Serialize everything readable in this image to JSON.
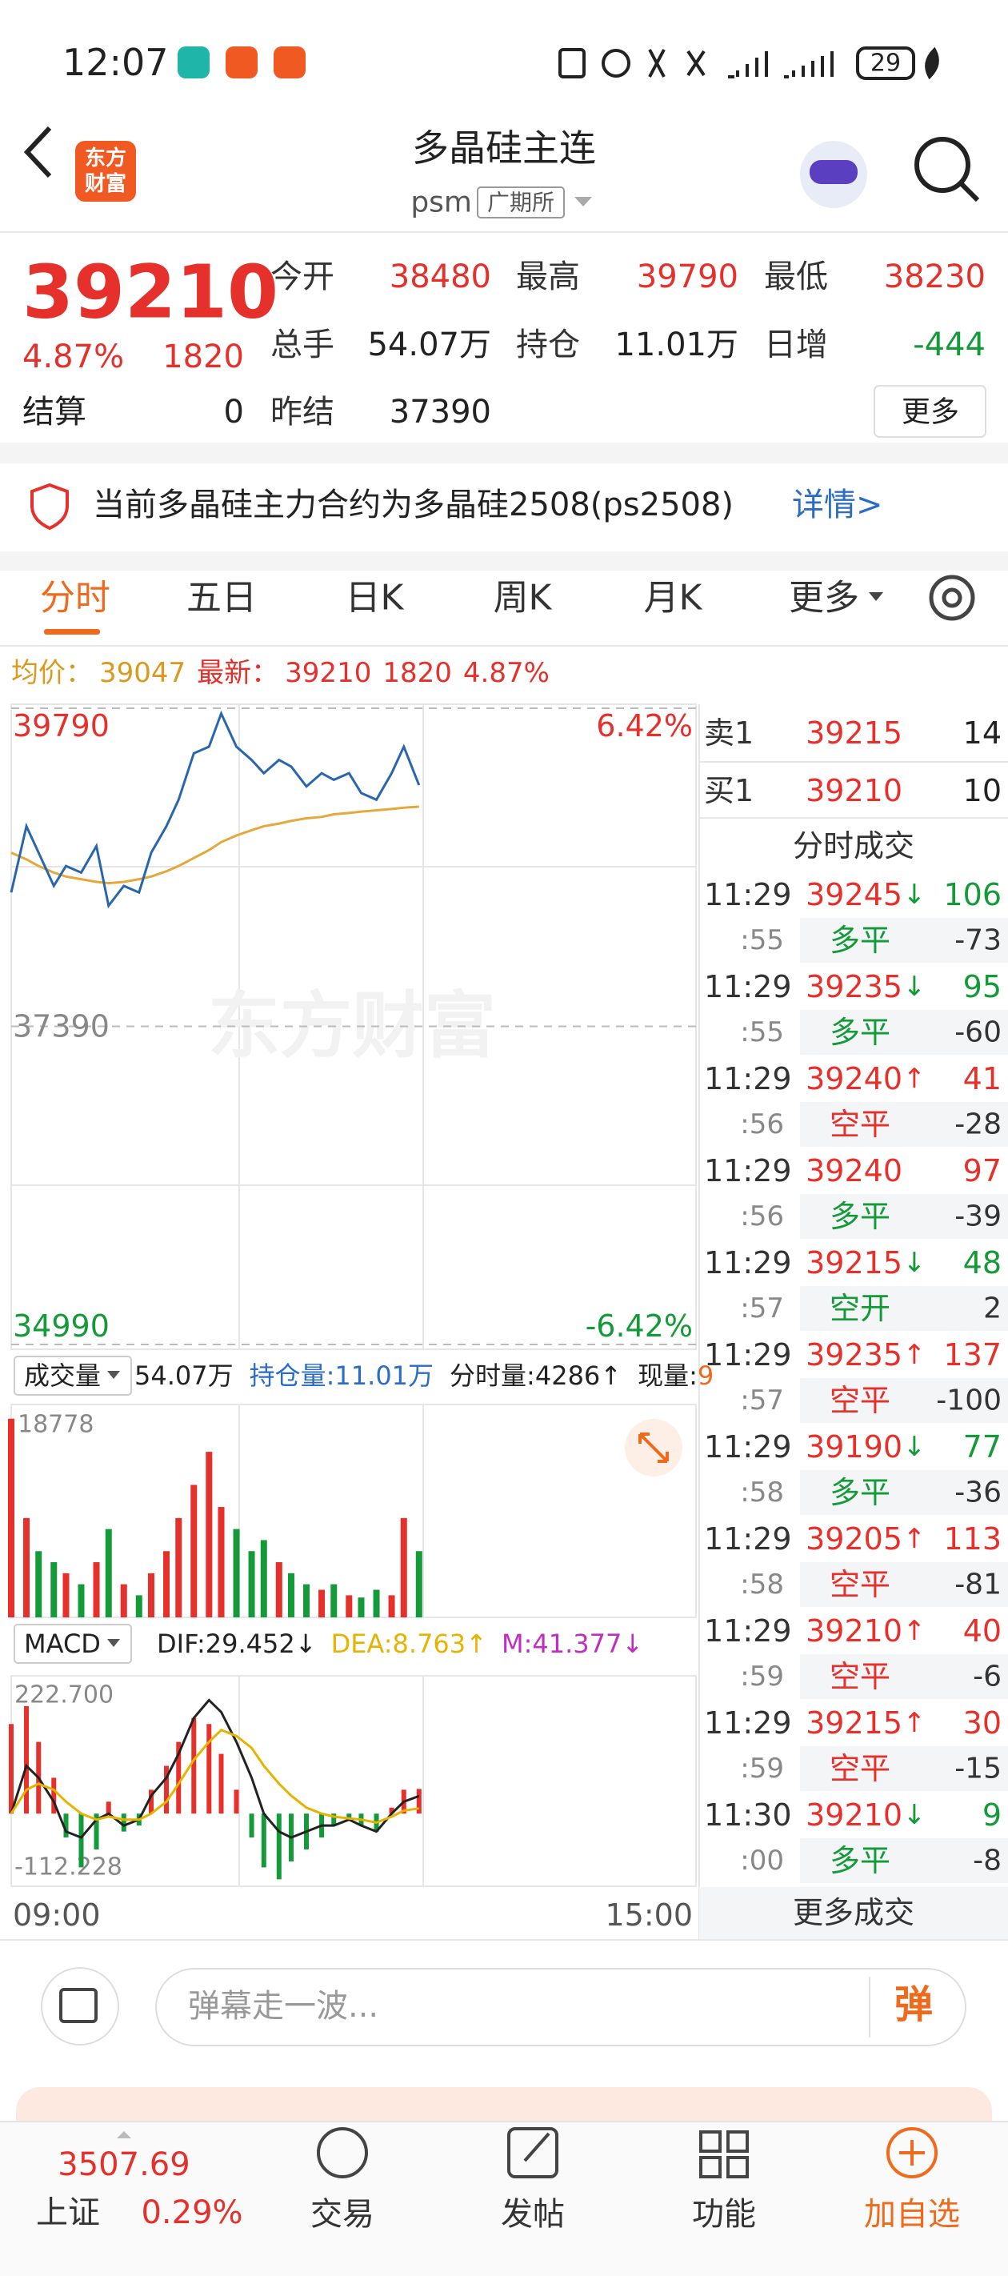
{
  "status_bar": {
    "time": "12:07",
    "battery": "29"
  },
  "header": {
    "logo": [
      "东方",
      "财富"
    ],
    "title": "多晶硅主连",
    "symbol": "psm",
    "exchange": "广期所"
  },
  "quote": {
    "price": 39210,
    "change_pct": "4.87%",
    "change": 1820,
    "settle_label": "结算",
    "settle": 0,
    "fields": [
      {
        "label": "今开",
        "value": 38480,
        "color": "#e5302b"
      },
      {
        "label": "最高",
        "value": 39790,
        "color": "#e5302b"
      },
      {
        "label": "最低",
        "value": 38230,
        "color": "#e5302b"
      },
      {
        "label": "总手",
        "value": "54.07万",
        "color": "#222222"
      },
      {
        "label": "持仓",
        "value": "11.01万",
        "color": "#222222"
      },
      {
        "label": "日增",
        "value": -444,
        "color": "#159a3a"
      },
      {
        "label": "昨结",
        "value": 37390,
        "color": "#222222"
      }
    ],
    "more": "更多"
  },
  "notice": {
    "text": "当前多晶硅主力合约为多晶硅2508(ps2508)",
    "link": "详情>"
  },
  "tabs": [
    "分时",
    "五日",
    "日K",
    "周K",
    "月K",
    "更多"
  ],
  "info": {
    "avg": 39047,
    "last": 39210,
    "change": 1820,
    "change_pct": "4.87%"
  },
  "chart_data": [
    {
      "type": "line",
      "watermark": "东方财富",
      "x": [
        0,
        5,
        9,
        14,
        18,
        23,
        28,
        32,
        37,
        42,
        46,
        51,
        55,
        60,
        65,
        69,
        74,
        79,
        83,
        88,
        92,
        97,
        102,
        106,
        111,
        115,
        120,
        125,
        129,
        134
      ],
      "xlim": [
        0,
        225
      ],
      "xticks": [
        {
          "value": 0,
          "label": "09:00"
        },
        {
          "value": 225,
          "label": "15:00"
        }
      ],
      "ylim": [
        34990,
        39790
      ],
      "yticks": [
        34990,
        37390,
        39790
      ],
      "y2lim": [
        -6.42,
        6.42
      ],
      "y2ticks": [
        {
          "value": -6.42,
          "label": "-6.42%"
        },
        {
          "value": 6.42,
          "label": "6.42%"
        }
      ],
      "series": [
        {
          "name": "最新：",
          "color": "#2a66ad",
          "values": [
            38400,
            38900,
            38700,
            38450,
            38600,
            38550,
            38750,
            38300,
            38450,
            38400,
            38700,
            38900,
            39100,
            39450,
            39500,
            39750,
            39500,
            39400,
            39300,
            39400,
            39350,
            39200,
            39300,
            39250,
            39300,
            39150,
            39100,
            39300,
            39500,
            39210
          ]
        },
        {
          "name": "均价：",
          "color": "#e6a83a",
          "values": [
            38700,
            38650,
            38600,
            38550,
            38520,
            38500,
            38480,
            38470,
            38480,
            38500,
            38520,
            38560,
            38600,
            38660,
            38720,
            38780,
            38830,
            38870,
            38900,
            38920,
            38940,
            38960,
            38970,
            38990,
            39000,
            39010,
            39020,
            39030,
            39040,
            39047
          ]
        }
      ]
    },
    {
      "type": "bar",
      "title": "成交量",
      "total": "54.07万",
      "stats": [
        {
          "label": "持仓量:",
          "value": "11.01万"
        },
        {
          "label": "分时量:",
          "value": "4286↑"
        },
        {
          "label": "现量:",
          "value": 9
        }
      ],
      "x": [
        0,
        5,
        9,
        14,
        18,
        23,
        28,
        32,
        37,
        42,
        46,
        51,
        55,
        60,
        65,
        69,
        74,
        79,
        83,
        88,
        92,
        97,
        102,
        106,
        111,
        115,
        120,
        125,
        129,
        134
      ],
      "xlim": [
        0,
        225
      ],
      "ylim": [
        0,
        18778
      ],
      "yticks": [
        18778
      ],
      "up_color": "#e5302b",
      "down_color": "#159a3a",
      "values": [
        18000,
        9000,
        6000,
        5000,
        4000,
        3000,
        5000,
        8000,
        3000,
        2000,
        4000,
        6000,
        9000,
        12000,
        15000,
        10000,
        8000,
        6000,
        7000,
        5000,
        4000,
        3000,
        2500,
        3000,
        2000,
        1800,
        2500,
        2000,
        9000,
        6000
      ]
    },
    {
      "type": "macd",
      "title": "MACD",
      "x": [
        0,
        5,
        9,
        14,
        18,
        23,
        28,
        32,
        37,
        42,
        46,
        51,
        55,
        60,
        65,
        69,
        74,
        79,
        83,
        88,
        92,
        97,
        102,
        106,
        111,
        115,
        120,
        125,
        129,
        134
      ],
      "xlim": [
        0,
        225
      ],
      "ylim": [
        -112.228,
        222.7
      ],
      "yticks": [
        {
          "value": 222.7,
          "label": "222.700"
        },
        {
          "value": -112.228,
          "label": "-112.228"
        }
      ],
      "pos_color": "#e5302b",
      "neg_color": "#159a3a",
      "series": [
        {
          "name": "DIF:",
          "arrow": "↓",
          "color": "#222222",
          "values": [
            0,
            80,
            60,
            20,
            -30,
            -40,
            -10,
            0,
            -20,
            -10,
            30,
            60,
            100,
            160,
            190,
            170,
            120,
            60,
            0,
            -30,
            -40,
            -30,
            -20,
            -20,
            -10,
            -20,
            -30,
            0,
            20,
            29.452
          ]
        },
        {
          "name": "DEA:",
          "arrow": "↑",
          "color": "#e6b400",
          "values": [
            0,
            40,
            50,
            40,
            20,
            0,
            -10,
            -5,
            -10,
            -10,
            0,
            20,
            50,
            90,
            120,
            140,
            130,
            110,
            80,
            50,
            30,
            10,
            0,
            -5,
            -8,
            -10,
            -15,
            -5,
            5,
            8.763
          ]
        },
        {
          "name": "M:",
          "arrow": "↓",
          "color": "#c02ec0",
          "kind": "bar",
          "values": [
            150,
            180,
            120,
            60,
            -40,
            -90,
            -60,
            20,
            -30,
            -20,
            40,
            80,
            120,
            160,
            150,
            100,
            40,
            -40,
            -90,
            -110,
            -80,
            -60,
            -40,
            -20,
            -10,
            -20,
            -30,
            10,
            40,
            41.377
          ]
        }
      ]
    }
  ],
  "order_book": [
    {
      "side": "卖1",
      "price": 39215,
      "vol": 14
    },
    {
      "side": "买1",
      "price": 39210,
      "vol": 10
    }
  ],
  "trades_title": "分时成交",
  "trades": [
    {
      "time": "11:29",
      "price": 39245,
      "arrow": "↓",
      "vol": 106,
      "vol_color": "#159a3a",
      "sec": ":55",
      "type": "多平",
      "type_color": "#159a3a",
      "oi": -73
    },
    {
      "time": "11:29",
      "price": 39235,
      "arrow": "↓",
      "vol": 95,
      "vol_color": "#159a3a",
      "sec": ":55",
      "type": "多平",
      "type_color": "#159a3a",
      "oi": -60
    },
    {
      "time": "11:29",
      "price": 39240,
      "arrow": "↑",
      "vol": 41,
      "vol_color": "#e5302b",
      "sec": ":56",
      "type": "空平",
      "type_color": "#e5302b",
      "oi": -28
    },
    {
      "time": "11:29",
      "price": 39240,
      "vol": 97,
      "vol_color": "#e5302b",
      "sec": ":56",
      "type": "多平",
      "type_color": "#159a3a",
      "oi": -39
    },
    {
      "time": "11:29",
      "price": 39215,
      "arrow": "↓",
      "vol": 48,
      "vol_color": "#159a3a",
      "sec": ":57",
      "type": "空开",
      "type_color": "#159a3a",
      "oi": 2
    },
    {
      "time": "11:29",
      "price": 39235,
      "arrow": "↑",
      "vol": 137,
      "vol_color": "#e5302b",
      "sec": ":57",
      "type": "空平",
      "type_color": "#e5302b",
      "oi": -100
    },
    {
      "time": "11:29",
      "price": 39190,
      "arrow": "↓",
      "vol": 77,
      "vol_color": "#159a3a",
      "sec": ":58",
      "type": "多平",
      "type_color": "#159a3a",
      "oi": -36
    },
    {
      "time": "11:29",
      "price": 39205,
      "arrow": "↑",
      "vol": 113,
      "vol_color": "#e5302b",
      "sec": ":58",
      "type": "空平",
      "type_color": "#e5302b",
      "oi": -81
    },
    {
      "time": "11:29",
      "price": 39210,
      "arrow": "↑",
      "vol": 40,
      "vol_color": "#e5302b",
      "sec": ":59",
      "type": "空平",
      "type_color": "#e5302b",
      "oi": -6
    },
    {
      "time": "11:29",
      "price": 39215,
      "arrow": "↑",
      "vol": 30,
      "vol_color": "#e5302b",
      "sec": ":59",
      "type": "空平",
      "type_color": "#e5302b",
      "oi": -15
    },
    {
      "time": "11:30",
      "price": 39210,
      "arrow": "↓",
      "vol": 9,
      "vol_color": "#159a3a",
      "sec": ":00",
      "type": "多平",
      "type_color": "#159a3a",
      "oi": -8
    }
  ],
  "trades_more": "更多成交",
  "comment": {
    "placeholder": "弹幕走一波...",
    "button": "弹"
  },
  "nav": {
    "index_value": 3507.69,
    "index_name": "上证",
    "index_pct": "0.29%",
    "items": [
      "交易",
      "发帖",
      "功能",
      "加自选"
    ]
  }
}
